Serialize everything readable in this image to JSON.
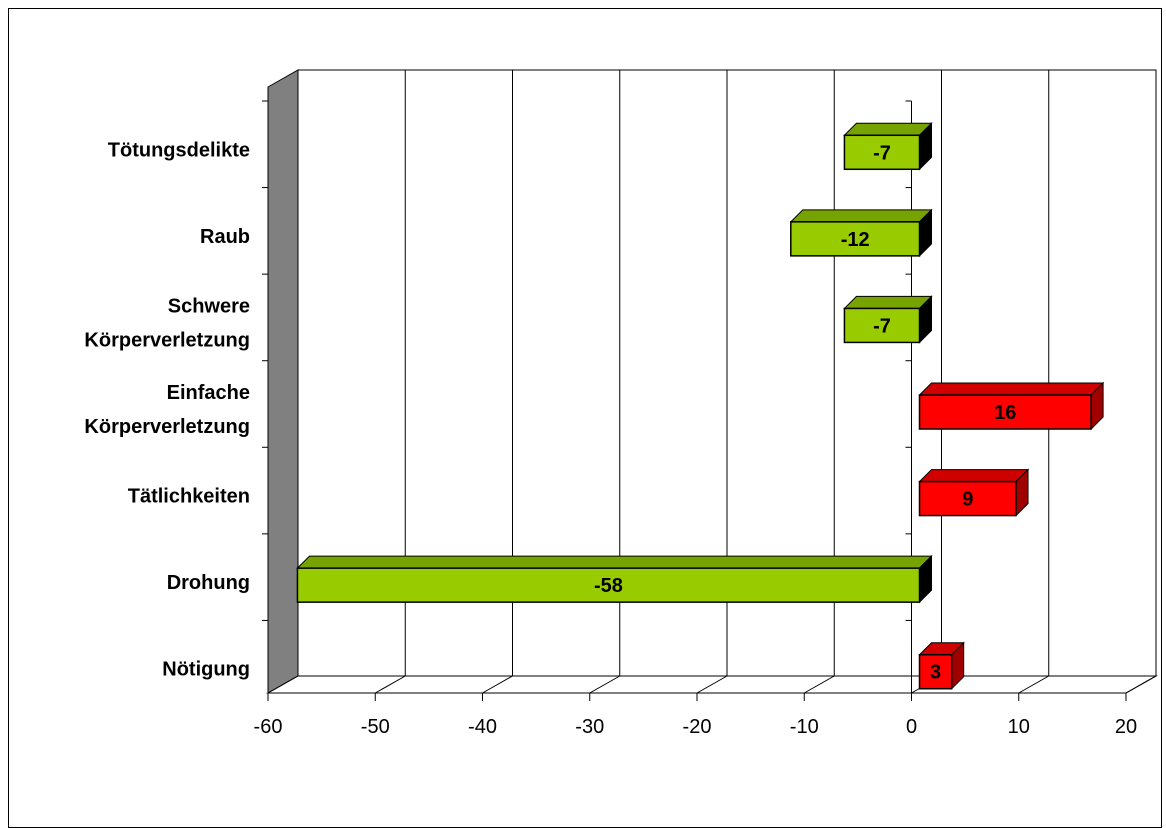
{
  "chart_data": {
    "type": "bar",
    "orientation": "horizontal",
    "style": "3d",
    "categories": [
      "Tötungsdelikte",
      "Raub",
      "Schwere Körperverletzung",
      "Einfache Körperverletzung",
      "Tätlichkeiten",
      "Drohung",
      "Nötigung"
    ],
    "category_lines": [
      [
        "Tötungsdelikte"
      ],
      [
        "Raub"
      ],
      [
        "Schwere",
        "Körperverletzung"
      ],
      [
        "Einfache",
        "Körperverletzung"
      ],
      [
        "Tätlichkeiten"
      ],
      [
        "Drohung"
      ],
      [
        "Nötigung"
      ]
    ],
    "values": [
      -7,
      -12,
      -7,
      16,
      9,
      -58,
      3
    ],
    "data_labels": [
      "-7",
      "-12",
      "-7",
      "16",
      "9",
      "-58",
      "3"
    ],
    "x_ticks": [
      "-60",
      "-50",
      "-40",
      "-30",
      "-20",
      "-10",
      "0",
      "10",
      "20"
    ],
    "xlim": [
      -60,
      20
    ],
    "grid": true,
    "legend": "none",
    "colors": {
      "negative": "#99cc00",
      "negative_side": "#000000",
      "negative_top": "#77a300",
      "positive": "#ff0000",
      "positive_side": "#a00000",
      "positive_top": "#d00000",
      "wall": "#808080"
    }
  }
}
